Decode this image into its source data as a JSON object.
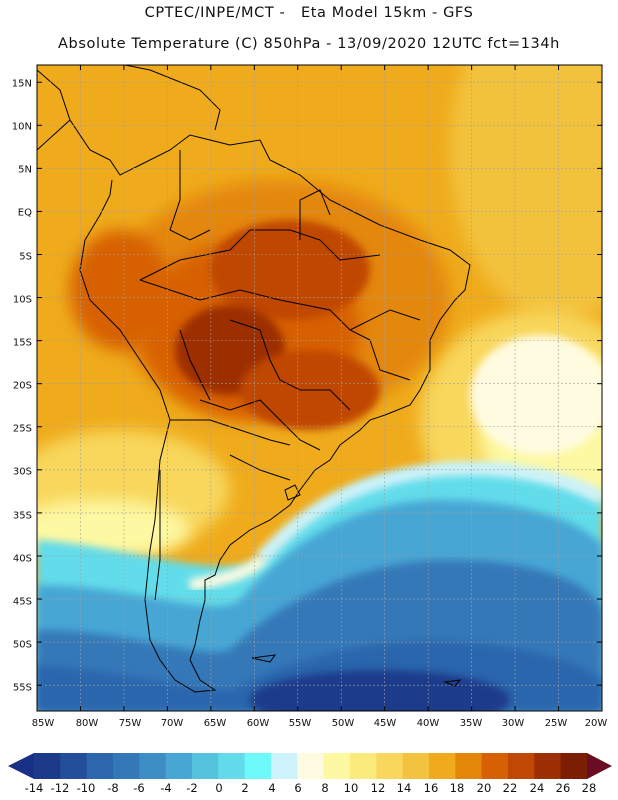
{
  "header": {
    "title_line1": "CPTEC/INPE/MCT -   Eta Model 15km - GFS",
    "title_line2": "Absolute Temperature (C) 850hPa - 13/09/2020 12UTC fct=134h"
  },
  "axes": {
    "lat_labels": [
      "15N",
      "10N",
      "5N",
      "EQ",
      "5S",
      "10S",
      "15S",
      "20S",
      "25S",
      "30S",
      "35S",
      "40S",
      "45S",
      "50S",
      "55S"
    ],
    "lon_labels": [
      "85W",
      "80W",
      "75W",
      "70W",
      "65W",
      "60W",
      "55W",
      "50W",
      "45W",
      "40W",
      "35W",
      "30W",
      "25W",
      "20W"
    ]
  },
  "colorbar": {
    "labels": [
      "-14",
      "-12",
      "-10",
      "-8",
      "-6",
      "-4",
      "-2",
      "0",
      "2",
      "4",
      "6",
      "8",
      "10",
      "12",
      "14",
      "16",
      "18",
      "20",
      "22",
      "24",
      "26",
      "28"
    ],
    "colors": [
      "#1c3a8a",
      "#234f9a",
      "#2c66ad",
      "#3578b8",
      "#3e8ec6",
      "#47a6d4",
      "#55c2de",
      "#62dcea",
      "#6ef9fb",
      "#cdf3fb",
      "#fffbe0",
      "#fdf8a2",
      "#fbeb7c",
      "#f8d75c",
      "#f3c23e",
      "#efab1b",
      "#e48709",
      "#d76004",
      "#c04704",
      "#9c2f04",
      "#7b1e04"
    ],
    "low_end_color": "#1a2f86",
    "high_end_color": "#6a0c22"
  }
}
